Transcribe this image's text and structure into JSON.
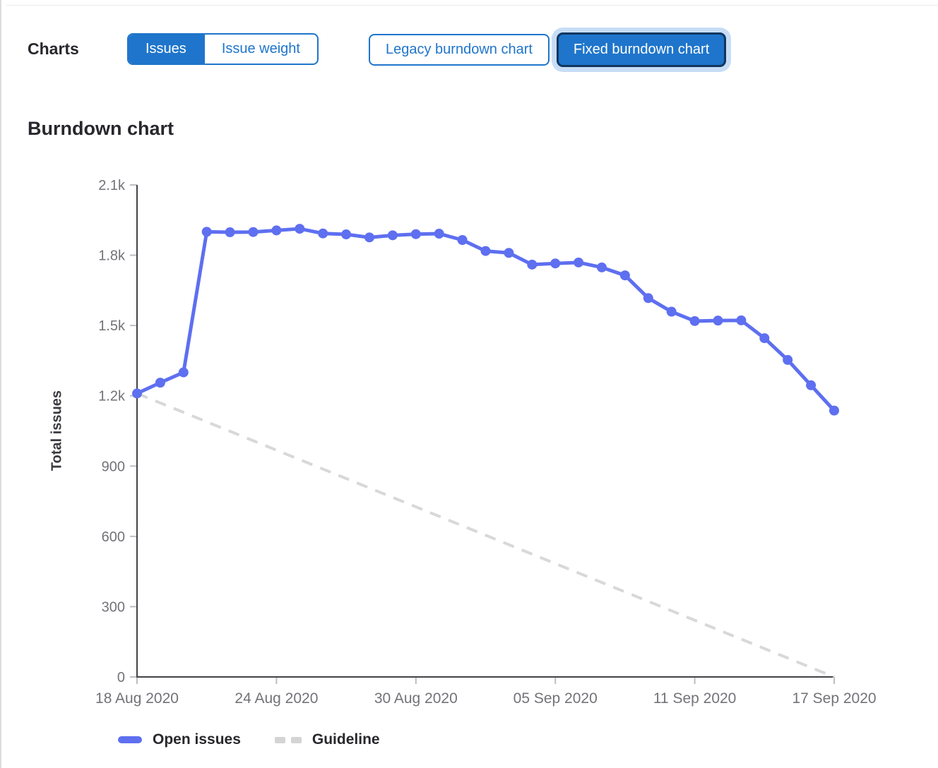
{
  "page": {
    "charts_label": "Charts",
    "section_title": "Burndown chart"
  },
  "toolbar": {
    "issue_toggle": [
      {
        "label": "Issues",
        "active": true
      },
      {
        "label": "Issue weight",
        "active": false
      }
    ],
    "chart_type_toggle": [
      {
        "label": "Legacy burndown chart",
        "active": false
      },
      {
        "label": "Fixed burndown chart",
        "active": true,
        "focused": true
      }
    ]
  },
  "colors": {
    "accent_blue": "#1f75cb",
    "series_blue": "#5e6ff0",
    "guideline_gray": "#d8d8d8",
    "focus_ring": "#c7ddf6",
    "focus_border": "#11365f",
    "axis": "#434248",
    "tick_mark": "#bdbdc2",
    "tick_label": "#737278",
    "text_dark": "#28272d"
  },
  "chart_data": {
    "type": "line",
    "title": "Burndown chart",
    "xlabel": "",
    "ylabel": "Total issues",
    "ylim": [
      0,
      2100
    ],
    "x_total_days": 30,
    "x_start_date": "18 Aug 2020",
    "x_end_date": "17 Sep 2020",
    "ytick_values": [
      0,
      300,
      600,
      900,
      1200,
      1500,
      1800,
      2100
    ],
    "ytick_labels": [
      "0",
      "300",
      "600",
      "900",
      "1.2k",
      "1.5k",
      "1.8k",
      "2.1k"
    ],
    "xtick_days": [
      0,
      6,
      12,
      18,
      24,
      30
    ],
    "xtick_labels": [
      "18 Aug 2020",
      "24 Aug 2020",
      "30 Aug 2020",
      "05 Sep 2020",
      "11 Sep 2020",
      "17 Sep 2020"
    ],
    "grid": false,
    "legend_position": "bottom",
    "series": [
      {
        "name": "Open issues",
        "style": "solid",
        "color": "#5e6ff0",
        "values": [
          1210,
          1256,
          1300,
          1900,
          1898,
          1899,
          1906,
          1913,
          1893,
          1889,
          1876,
          1885,
          1890,
          1892,
          1865,
          1818,
          1810,
          1760,
          1765,
          1769,
          1748,
          1714,
          1617,
          1559,
          1519,
          1521,
          1522,
          1446,
          1353,
          1245,
          1137
        ]
      },
      {
        "name": "Guideline",
        "style": "dashed",
        "color": "#d8d8d8",
        "points": [
          [
            0,
            1210
          ],
          [
            30,
            0
          ]
        ]
      }
    ]
  }
}
